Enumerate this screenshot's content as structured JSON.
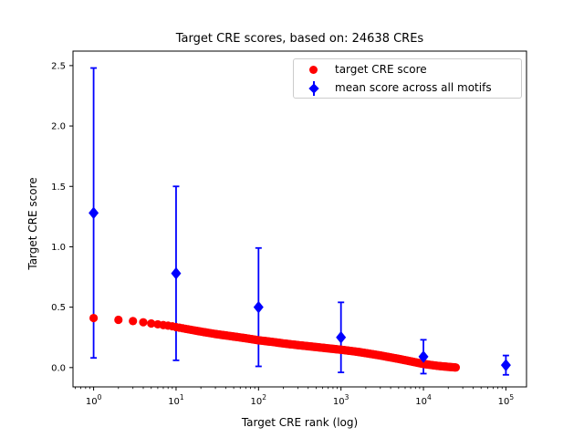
{
  "figure": {
    "background": "#ffffff",
    "frame_color": "#000000"
  },
  "chart_data": {
    "type": "scatter",
    "title": "Target CRE scores, based on: 24638 CREs",
    "xlabel": "Target CRE rank (log)",
    "ylabel": "Target CRE score",
    "x_scale": "log",
    "x_tick_base": "10",
    "x_tick_exponents": [
      0,
      1,
      2,
      3,
      4,
      5
    ],
    "y_ticks": [
      0.0,
      0.5,
      1.0,
      1.5,
      2.0,
      2.5
    ],
    "xlim_log10": [
      -0.25,
      5.25
    ],
    "ylim": [
      -0.16,
      2.62
    ],
    "grid": false,
    "legend": {
      "position": "upper right",
      "entries": [
        {
          "label": "target CRE score",
          "marker": "circle",
          "color": "#ff0000"
        },
        {
          "label": "mean score across all motifs",
          "marker": "diamond-errorbar",
          "color": "#0000ff"
        }
      ]
    },
    "series": [
      {
        "name": "target CRE score",
        "marker": "circle",
        "color": "#ff0000",
        "n_points_depicted": 24638,
        "anchor_ranks": [
          1,
          2,
          3,
          4,
          5,
          6,
          7,
          8,
          9,
          10,
          15,
          20,
          30,
          50,
          70,
          100,
          150,
          200,
          300,
          500,
          700,
          1000,
          1500,
          2000,
          3000,
          5000,
          7000,
          10000,
          15000,
          20000,
          24638
        ],
        "anchor_scores": [
          0.41,
          0.395,
          0.385,
          0.375,
          0.365,
          0.358,
          0.352,
          0.347,
          0.342,
          0.335,
          0.313,
          0.298,
          0.278,
          0.257,
          0.243,
          0.226,
          0.212,
          0.2,
          0.186,
          0.17,
          0.159,
          0.148,
          0.133,
          0.12,
          0.1,
          0.072,
          0.052,
          0.03,
          0.014,
          0.006,
          0.001
        ]
      },
      {
        "name": "mean score across all motifs",
        "marker": "diamond",
        "color": "#0000ff",
        "x": [
          1,
          10,
          100,
          1000,
          10000,
          100000
        ],
        "mean": [
          1.28,
          0.78,
          0.5,
          0.25,
          0.09,
          0.02
        ],
        "err": [
          1.2,
          0.72,
          0.49,
          0.29,
          0.14,
          0.08
        ]
      }
    ]
  }
}
